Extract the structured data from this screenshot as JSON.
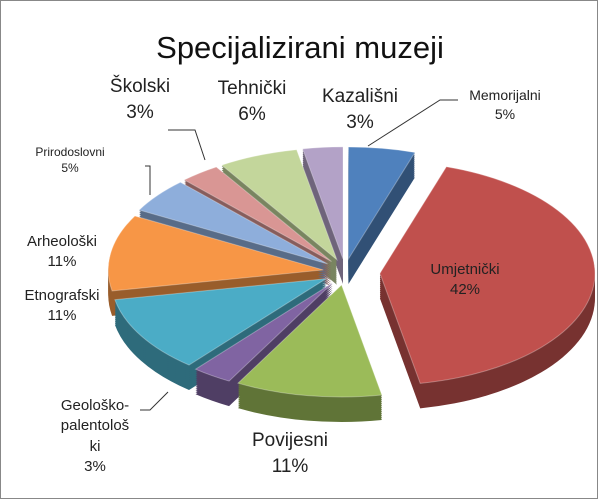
{
  "chart_data": {
    "type": "pie3d",
    "title": "Specijalizirani muzeji",
    "categories": [
      "Memorijalni",
      "Umjetnički",
      "Povijesni",
      "Geološko-palentološki",
      "Etnografski",
      "Arheološki",
      "Prirodoslovni",
      "Školski",
      "Tehnički",
      "Kazališni"
    ],
    "values": [
      5,
      42,
      11,
      3,
      11,
      11,
      5,
      3,
      6,
      3
    ],
    "value_labels": [
      "5%",
      "42%",
      "11%",
      "3%",
      "11%",
      "11%",
      "5%",
      "3%",
      "6%",
      "3%"
    ],
    "colors": [
      "#4f81bd",
      "#c0504d",
      "#9bbb59",
      "#8064a2",
      "#4bacc6",
      "#f79646",
      "#8eaedb",
      "#d99694",
      "#c3d69b",
      "#b3a2c7"
    ]
  }
}
